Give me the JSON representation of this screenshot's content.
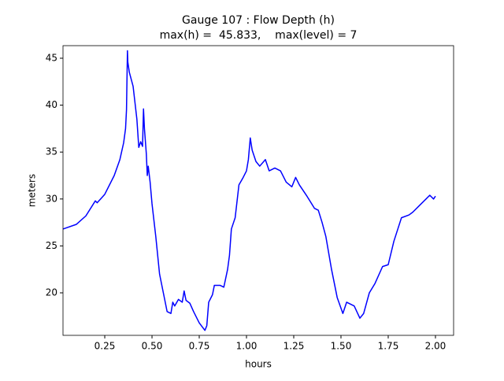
{
  "chart_data": {
    "type": "line",
    "title": "Gauge 107 : Flow Depth (h)",
    "subtitle": "max(h) =  45.833,    max(level) = 7",
    "x_label": "hours",
    "y_label": "meters",
    "xlim": [
      0.029,
      2.096
    ],
    "ylim": [
      15.47,
      46.34
    ],
    "xticks": [
      0.25,
      {
        "value": 0.5,
        "label": "0.50"
      },
      0.75,
      {
        "value": 1,
        "label": "1.00"
      },
      1.25,
      {
        "value": 1.5,
        "label": "1.50"
      },
      1.75,
      {
        "value": 2,
        "label": "2.00"
      }
    ],
    "yticks": [
      20,
      25,
      30,
      35,
      40,
      45
    ],
    "x": [
      0.029,
      0.1,
      0.15,
      0.2,
      0.21,
      0.25,
      0.3,
      0.33,
      0.35,
      0.36,
      0.365,
      0.37,
      0.372,
      0.38,
      0.4,
      0.42,
      0.43,
      0.44,
      0.45,
      0.455,
      0.46,
      0.47,
      0.475,
      0.48,
      0.49,
      0.5,
      0.52,
      0.54,
      0.56,
      0.58,
      0.6,
      0.61,
      0.62,
      0.64,
      0.66,
      0.67,
      0.68,
      0.7,
      0.72,
      0.75,
      0.78,
      0.79,
      0.8,
      0.82,
      0.83,
      0.86,
      0.88,
      0.9,
      0.91,
      0.92,
      0.94,
      0.96,
      0.98,
      1.0,
      1.01,
      1.02,
      1.03,
      1.05,
      1.07,
      1.1,
      1.12,
      1.15,
      1.18,
      1.21,
      1.24,
      1.26,
      1.28,
      1.32,
      1.36,
      1.38,
      1.4,
      1.42,
      1.45,
      1.48,
      1.51,
      1.53,
      1.57,
      1.6,
      1.62,
      1.65,
      1.68,
      1.72,
      1.75,
      1.78,
      1.82,
      1.86,
      1.88,
      1.92,
      1.95,
      1.97,
      1.99,
      2.0
    ],
    "series": [
      {
        "color": "#0000ff",
        "values": [
          26.8,
          27.3,
          28.2,
          29.8,
          29.6,
          30.5,
          32.5,
          34.2,
          36.0,
          37.5,
          39.5,
          45.8,
          44.6,
          43.5,
          42.0,
          38.5,
          35.5,
          36.1,
          35.6,
          39.6,
          37.5,
          34.8,
          32.5,
          33.5,
          31.8,
          29.5,
          26.0,
          22.0,
          20.0,
          18.0,
          17.8,
          19.0,
          18.6,
          19.3,
          19.0,
          20.2,
          19.2,
          18.9,
          18.0,
          16.8,
          16.0,
          16.5,
          19.0,
          19.8,
          20.8,
          20.8,
          20.6,
          22.5,
          24.0,
          26.8,
          28.0,
          31.5,
          32.2,
          33.0,
          34.2,
          36.5,
          35.2,
          34.0,
          33.5,
          34.2,
          33.0,
          33.3,
          33.0,
          31.8,
          31.3,
          32.3,
          31.5,
          30.3,
          29.0,
          28.8,
          27.5,
          26.0,
          22.5,
          19.5,
          17.8,
          19.0,
          18.6,
          17.3,
          17.8,
          20.0,
          21.0,
          22.8,
          23.0,
          25.5,
          28.0,
          28.3,
          28.6,
          29.4,
          30.0,
          30.4,
          30.0,
          30.3
        ]
      }
    ]
  }
}
